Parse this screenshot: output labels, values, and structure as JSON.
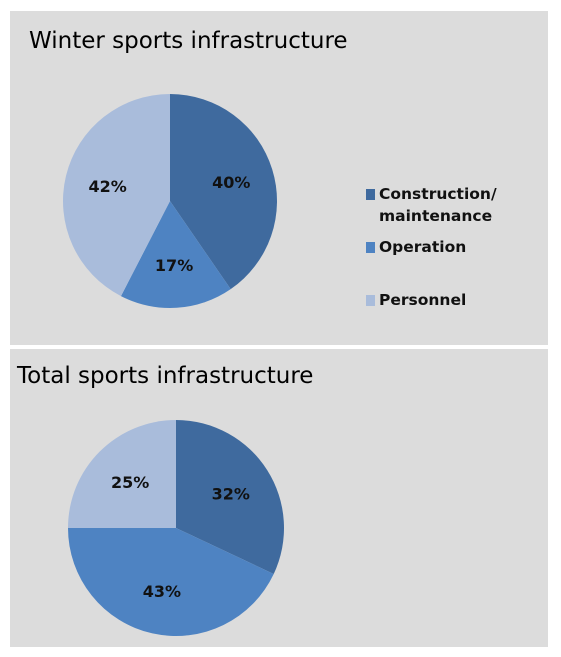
{
  "chart_data": [
    {
      "type": "pie",
      "title": "Winter sports infrastructure",
      "categories": [
        "Construction/ maintenance",
        "Operation",
        "Personnel"
      ],
      "values": [
        40,
        17,
        42
      ],
      "labels": [
        "40%",
        "17%",
        "42%"
      ],
      "colors": [
        "#3f6a9e",
        "#4e83c2",
        "#a9bcdb"
      ],
      "legend": "right"
    },
    {
      "type": "pie",
      "title": "Total sports infrastructure",
      "categories": [
        "Construction/ maintenance",
        "Operation",
        "Personnel"
      ],
      "values": [
        32,
        43,
        25
      ],
      "labels": [
        "32%",
        "43%",
        "25%"
      ],
      "colors": [
        "#3f6a9e",
        "#4e83c2",
        "#a9bcdb"
      ]
    }
  ],
  "legend": {
    "items": [
      {
        "label": "Construction/\nmaintenance",
        "color": "#3f6a9e"
      },
      {
        "label": "Operation",
        "color": "#4e83c2"
      },
      {
        "label": "Personnel",
        "color": "#a9bcdb"
      }
    ]
  }
}
